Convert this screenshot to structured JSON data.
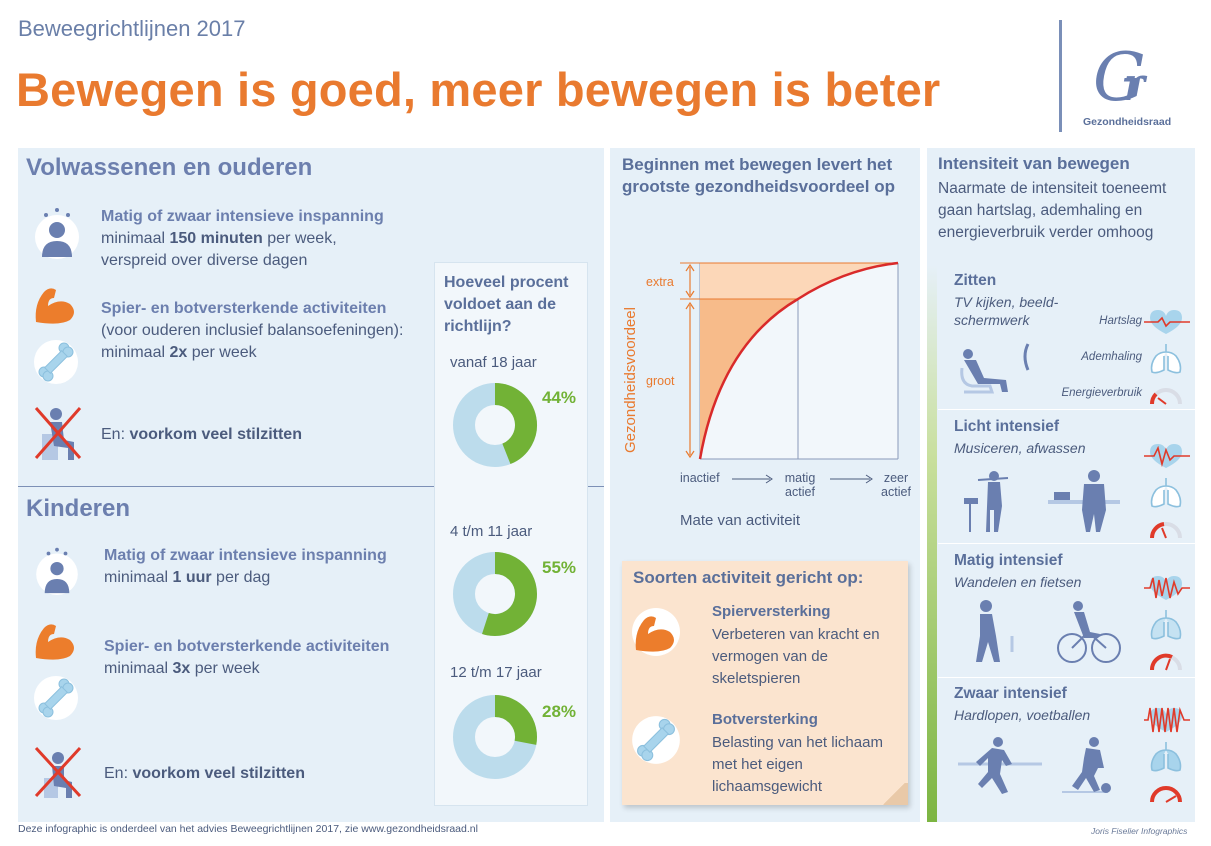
{
  "header": {
    "subtitle": "Beweegrichtlijnen 2017",
    "title": "Bewegen is goed, meer bewegen is beter",
    "logo_text": "Gezondheidsraad"
  },
  "adults": {
    "title": "Volwassenen en ouderen",
    "item1_title": "Matig of zwaar intensieve inspanning",
    "item1_line1_pre": "minimaal ",
    "item1_line1_bold": "150 minuten",
    "item1_line1_post": " per week,",
    "item1_line2": "verspreid over diverse dagen",
    "item2_title": "Spier- en botversterkende activiteiten",
    "item2_line1": "(voor ouderen inclusief balansoefeningen):",
    "item2_line2_pre": "minimaal ",
    "item2_line2_bold": "2x",
    "item2_line2_post": " per week",
    "item3_pre": "En: ",
    "item3_bold": "voorkom veel stilzitten"
  },
  "children": {
    "title": "Kinderen",
    "item1_title": "Matig of zwaar intensieve inspanning",
    "item1_line1_pre": "minimaal ",
    "item1_line1_bold": "1 uur",
    "item1_line1_post": " per dag",
    "item2_title": "Spier- en botversterkende activiteiten",
    "item2_line1_pre": "minimaal ",
    "item2_line1_bold": "3x",
    "item2_line1_post": " per week",
    "item3_pre": "En: ",
    "item3_bold": "voorkom veel stilzitten"
  },
  "percent": {
    "heading": "Hoeveel procent voldoet aan de richtlijn?",
    "groups": [
      {
        "age": "vanaf 18 jaar",
        "label": "44%",
        "value": 44
      },
      {
        "age": "4 t/m 11 jaar",
        "label": "55%",
        "value": 55
      },
      {
        "age": "12 t/m 17 jaar",
        "label": "28%",
        "value": 28
      }
    ],
    "colors": {
      "filled": "#72b236",
      "rest": "#bcdcec"
    }
  },
  "middle": {
    "title": "Beginnen met bewegen levert het grootste gezondheidsvoordeel op",
    "y_axis_label": "Gezondheidsvoordeel",
    "extra": "extra",
    "groot": "groot",
    "x_inactief": "inactief",
    "x_matig_1": "matig",
    "x_matig_2": "actief",
    "x_zeer_1": "zeer",
    "x_zeer_2": "actief",
    "x_title": "Mate van activiteit"
  },
  "chart_data": {
    "type": "area",
    "x": [
      "inactief",
      "matig actief",
      "zeer actief"
    ],
    "xlabel": "Mate van activiteit",
    "ylabel": "Gezondheidsvoordeel",
    "y_bands": [
      "groot",
      "extra"
    ]
  },
  "activity_types": {
    "title": "Soorten activiteit gericht op:",
    "spier_title": "Spierversterking",
    "spier_text": "Verbeteren van kracht en vermogen van de skeletspieren",
    "bot_title": "Botversterking",
    "bot_text": "Belasting van het lichaam met het eigen lichaamsgewicht"
  },
  "intensity": {
    "title": "Intensiteit van bewegen",
    "desc": "Naarmate de intensiteit toeneemt gaan hartslag, ademhaling en energieverbruik verder omhoog",
    "legend_hartslag": "Hartslag",
    "legend_ademhaling": "Ademhaling",
    "legend_energie": "Energieverbruik",
    "levels": [
      {
        "title": "Zitten",
        "sub1": "TV kijken, beeld-",
        "sub2": "schermwerk"
      },
      {
        "title": "Licht intensief",
        "sub1": "Musiceren, afwassen",
        "sub2": ""
      },
      {
        "title": "Matig intensief",
        "sub1": "Wandelen en fietsen",
        "sub2": ""
      },
      {
        "title": "Zwaar intensief",
        "sub1": "Hardlopen, voetballen",
        "sub2": ""
      }
    ]
  },
  "footer": {
    "text": "Deze infographic is onderdeel van het advies Beweegrichtlijnen 2017, zie www.gezondheidsraad.nl",
    "credit": "Joris Fiselier Infographics"
  }
}
